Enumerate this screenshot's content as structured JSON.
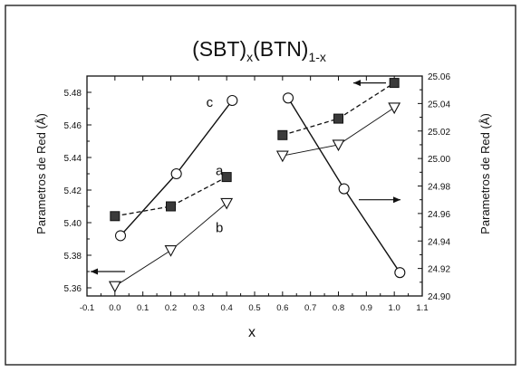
{
  "chart_data": {
    "type": "scatter",
    "title": {
      "base1": "(SBT)",
      "sub1": "x",
      "base2": "(BTN)",
      "sub2": "1-x"
    },
    "xlabel": "x",
    "ylabel_left": "Parametros de Red (Å)",
    "ylabel_right": "Parametros de Red (Å)",
    "xlim": [
      -0.1,
      1.1
    ],
    "ylim_left": [
      5.355,
      5.49
    ],
    "ylim_right": [
      24.9,
      25.06
    ],
    "x_ticks": [
      "-0.1",
      "0.0",
      "0.1",
      "0.2",
      "0.3",
      "0.4",
      "0.5",
      "0.6",
      "0.7",
      "0.8",
      "0.9",
      "1.0",
      "1.1"
    ],
    "y_ticks_left": [
      "5.36",
      "5.38",
      "5.40",
      "5.42",
      "5.44",
      "5.46",
      "5.48"
    ],
    "y_ticks_right": [
      "24.90",
      "24.92",
      "24.94",
      "24.96",
      "24.98",
      "25.00",
      "25.02",
      "25.04",
      "25.06"
    ],
    "grid": false,
    "series": [
      {
        "name": "a",
        "axis": "left",
        "marker": "filled-square",
        "line": "dashed",
        "x": [
          0.0,
          0.2,
          0.4
        ],
        "y": [
          5.404,
          5.41,
          5.428
        ]
      },
      {
        "name": "b",
        "axis": "left",
        "marker": "open-triangle-down",
        "line": "solid-thin",
        "x": [
          0.0,
          0.2,
          0.4
        ],
        "y": [
          5.361,
          5.383,
          5.412
        ]
      },
      {
        "name": "c",
        "axis": "left",
        "marker": "open-circle",
        "line": "solid",
        "x": [
          0.02,
          0.22,
          0.42
        ],
        "y": [
          5.392,
          5.43,
          5.475
        ]
      },
      {
        "axis": "right",
        "marker": "filled-square",
        "line": "dashed",
        "x": [
          0.6,
          0.8,
          1.0
        ],
        "y": [
          25.017,
          25.029,
          25.055
        ]
      },
      {
        "axis": "right",
        "marker": "open-triangle-down",
        "line": "solid-thin",
        "x": [
          0.6,
          0.8,
          1.0
        ],
        "y": [
          25.002,
          25.01,
          25.037
        ]
      },
      {
        "axis": "right",
        "marker": "open-circle",
        "line": "solid",
        "x": [
          0.62,
          0.82,
          1.02
        ],
        "y": [
          25.044,
          24.978,
          24.917
        ]
      }
    ],
    "arrows": [
      {
        "direction": "left",
        "axis": "left"
      },
      {
        "direction": "left",
        "axis": "right"
      },
      {
        "direction": "right",
        "axis": "right"
      }
    ]
  }
}
